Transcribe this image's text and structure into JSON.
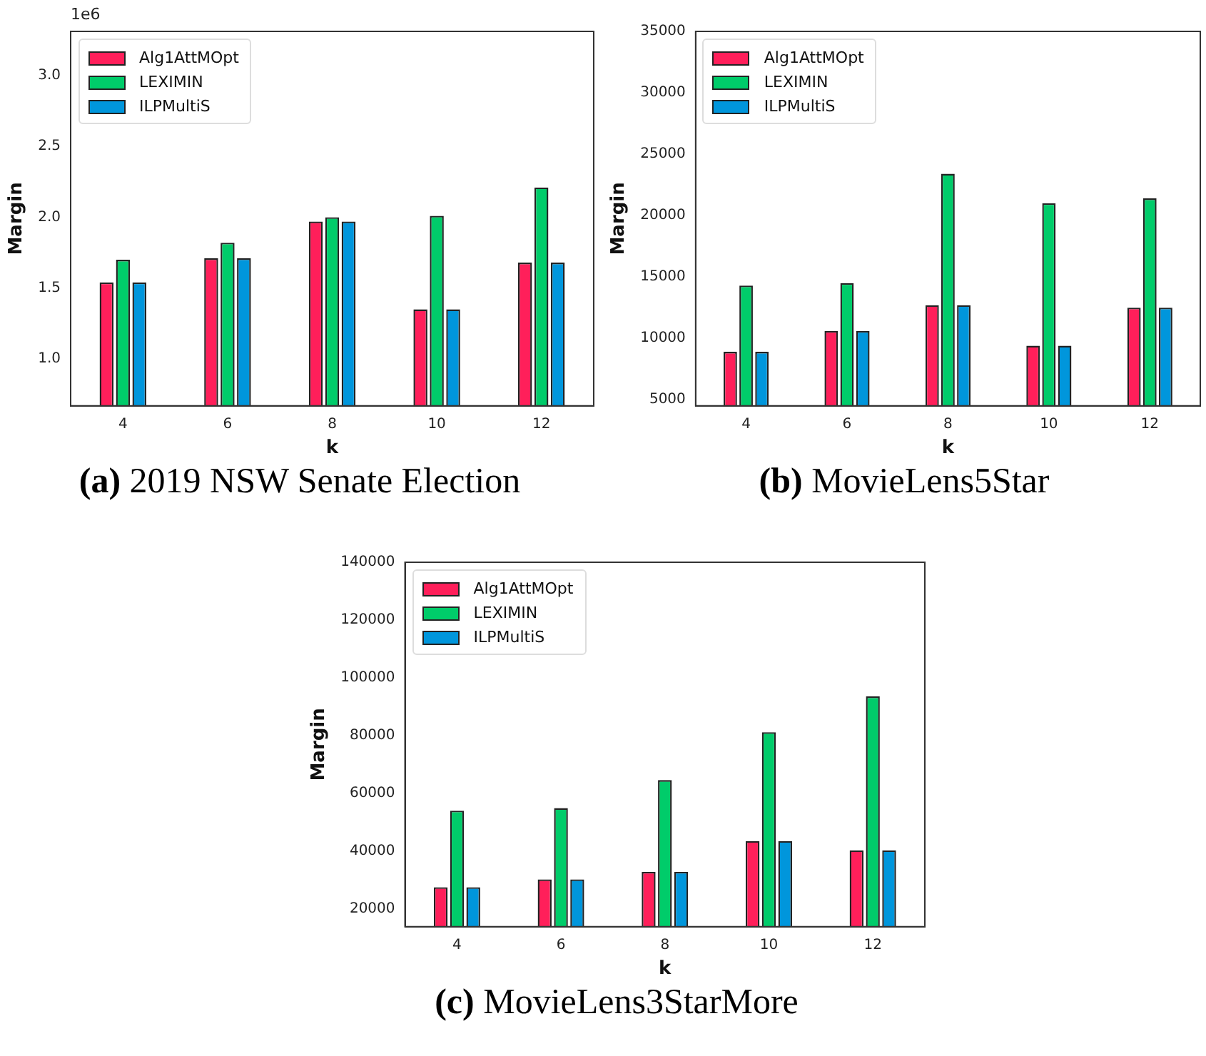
{
  "chart_data": [
    {
      "type": "bar",
      "title": "(a) 2019 NSW Senate Election",
      "xlabel": "k",
      "ylabel": "Margin",
      "annotations": [
        "1e6"
      ],
      "categories": [
        "4",
        "6",
        "8",
        "10",
        "12"
      ],
      "series": [
        {
          "name": "Alg1AttMOpt",
          "color": "#ff1f5a",
          "values": [
            1.54,
            1.71,
            1.97,
            1.35,
            1.68
          ]
        },
        {
          "name": "LEXIMIN",
          "color": "#00cc6a",
          "values": [
            1.7,
            1.82,
            2.0,
            2.01,
            2.21
          ]
        },
        {
          "name": "ILPMultiS",
          "color": "#0096dc",
          "values": [
            1.54,
            1.71,
            1.97,
            1.35,
            1.68
          ]
        }
      ],
      "ylim": [
        0.67,
        3.31
      ],
      "yticks": [
        {
          "value": 1,
          "label": "1.0"
        },
        {
          "value": 1.5,
          "label": "1.5"
        },
        {
          "value": 2,
          "label": "2.0"
        },
        {
          "value": 2.5,
          "label": "2.5"
        },
        {
          "value": 3,
          "label": "3.0"
        }
      ],
      "grid": false,
      "legend": "top left"
    },
    {
      "type": "bar",
      "title": "(b) MovieLens5Star",
      "xlabel": "k",
      "ylabel": "Margin",
      "categories": [
        "4",
        "6",
        "8",
        "10",
        "12"
      ],
      "series": [
        {
          "name": "Alg1AttMOpt",
          "color": "#ff1f5a",
          "values": [
            8900,
            10600,
            12700,
            9400,
            12500
          ]
        },
        {
          "name": "LEXIMIN",
          "color": "#00cc6a",
          "values": [
            14300,
            14500,
            23400,
            21000,
            21400
          ]
        },
        {
          "name": "ILPMultiS",
          "color": "#0096dc",
          "values": [
            8900,
            10600,
            12700,
            9400,
            12500
          ]
        }
      ],
      "ylim": [
        4500,
        35000
      ],
      "yticks": [
        5000,
        10000,
        15000,
        20000,
        25000,
        30000,
        35000
      ],
      "grid": false,
      "legend": "top left"
    },
    {
      "type": "bar",
      "title": "(c) MovieLens3StarMore",
      "xlabel": "k",
      "ylabel": "Margin",
      "categories": [
        "4",
        "6",
        "8",
        "10",
        "12"
      ],
      "series": [
        {
          "name": "Alg1AttMOpt",
          "color": "#ff1f5a",
          "values": [
            27400,
            30100,
            32700,
            43400,
            40200
          ]
        },
        {
          "name": "LEXIMIN",
          "color": "#00cc6a",
          "values": [
            53900,
            54800,
            64500,
            81100,
            93500
          ]
        },
        {
          "name": "ILPMultiS",
          "color": "#0096dc",
          "values": [
            27400,
            30100,
            32700,
            43400,
            40200
          ]
        }
      ],
      "ylim": [
        13700,
        140000
      ],
      "yticks": [
        20000,
        40000,
        60000,
        80000,
        100000,
        120000,
        140000
      ],
      "grid": false,
      "legend": "top left"
    }
  ]
}
